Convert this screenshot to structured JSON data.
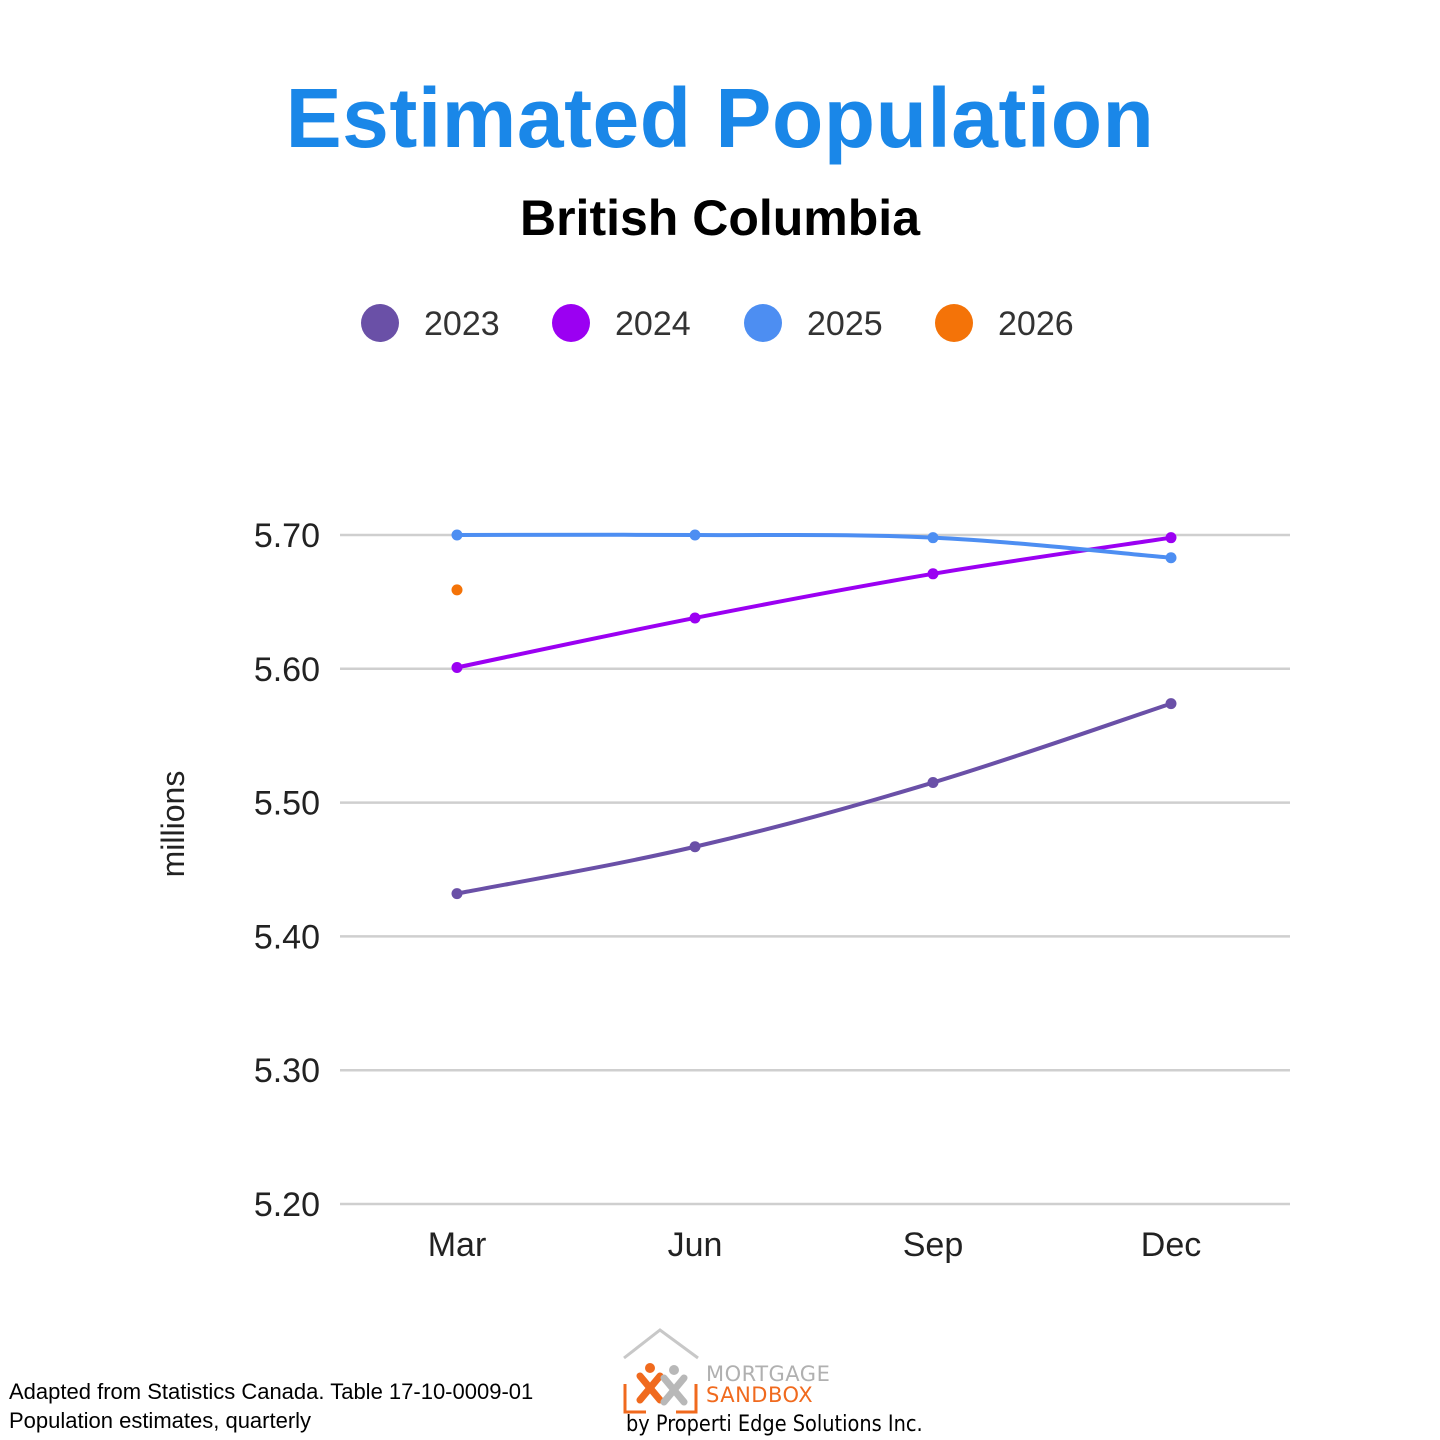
{
  "chart_data": {
    "type": "line",
    "title": "Estimated Population",
    "subtitle": "British Columbia",
    "ylabel": "millions",
    "xlabel": "",
    "categories": [
      "Mar",
      "Jun",
      "Sep",
      "Dec"
    ],
    "ylim": [
      5.2,
      5.7
    ],
    "yticks": [
      "5.20",
      "5.30",
      "5.40",
      "5.50",
      "5.60",
      "5.70"
    ],
    "grid": true,
    "legend_position": "top",
    "series": [
      {
        "name": "2023",
        "color": "#6a50a7",
        "values": [
          5.432,
          5.467,
          5.515,
          5.574
        ]
      },
      {
        "name": "2024",
        "color": "#9b00f2",
        "values": [
          5.601,
          5.638,
          5.671,
          5.698
        ]
      },
      {
        "name": "2025",
        "color": "#4d8ef2",
        "values": [
          5.7,
          5.7,
          5.698,
          5.683
        ]
      },
      {
        "name": "2026",
        "color": "#f47308",
        "values": [
          5.659,
          null,
          null,
          null
        ]
      }
    ]
  },
  "source": {
    "line1": "Adapted from Statistics Canada. Table 17-10-0009-01",
    "line2": "Population estimates, quarterly"
  },
  "logo": {
    "mortgage": "MORTGAGE",
    "sandbox": "SANDBOX",
    "byline": "by Properti Edge Solutions Inc."
  }
}
